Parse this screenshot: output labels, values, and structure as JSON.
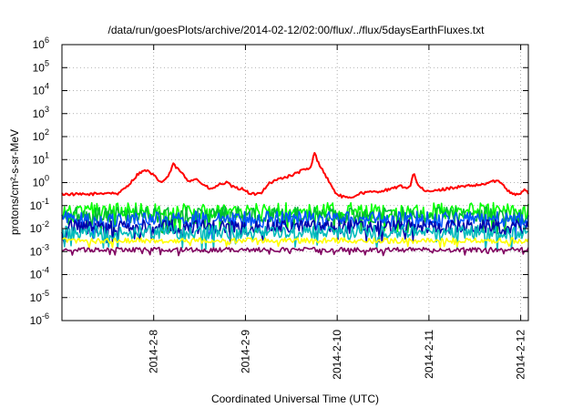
{
  "chart_data": {
    "type": "line",
    "title": "/data/run/goesPlots/archive/2014-02-12/02:00/flux/../flux/5daysEarthFluxes.txt",
    "xlabel": "Coordinated Universal Time (UTC)",
    "ylabel": "protons/cm²-s-sr-MeV",
    "y_scale": "log",
    "ylim": [
      "1e-6",
      "1e6"
    ],
    "xlim": [
      "2014-02-07T00:00",
      "2014-02-12T02:00"
    ],
    "grid": true,
    "legend": "none",
    "y_ticks": [
      {
        "value": 1e-06,
        "base": "10",
        "exp": "-6"
      },
      {
        "value": 1e-05,
        "base": "10",
        "exp": "-5"
      },
      {
        "value": 0.0001,
        "base": "10",
        "exp": "-4"
      },
      {
        "value": 0.001,
        "base": "10",
        "exp": "-3"
      },
      {
        "value": 0.01,
        "base": "10",
        "exp": "-2"
      },
      {
        "value": 0.1,
        "base": "10",
        "exp": "-1"
      },
      {
        "value": 1,
        "base": "10",
        "exp": "0"
      },
      {
        "value": 10,
        "base": "10",
        "exp": "1"
      },
      {
        "value": 100,
        "base": "10",
        "exp": "2"
      },
      {
        "value": 1000,
        "base": "10",
        "exp": "3"
      },
      {
        "value": 10000,
        "base": "10",
        "exp": "4"
      },
      {
        "value": 100000,
        "base": "10",
        "exp": "5"
      },
      {
        "value": 1000000,
        "base": "10",
        "exp": "6"
      }
    ],
    "x_ticks": [
      {
        "label": "2014-2-8",
        "date": "2014-02-08T00:00"
      },
      {
        "label": "2014-2-9",
        "date": "2014-02-09T00:00"
      },
      {
        "label": "2014-2-10",
        "date": "2014-02-10T00:00"
      },
      {
        "label": "2014-2-11",
        "date": "2014-02-11T00:00"
      },
      {
        "label": "2014-2-12",
        "date": "2014-02-12T00:00"
      }
    ],
    "series": [
      {
        "color": "#ff0000",
        "noise": 0.06,
        "points": [
          [
            "2014-02-07T00:00",
            0.32
          ],
          [
            "2014-02-07T06:00",
            0.3
          ],
          [
            "2014-02-07T12:00",
            0.36
          ],
          [
            "2014-02-07T15:00",
            0.33
          ],
          [
            "2014-02-07T16:00",
            0.5
          ],
          [
            "2014-02-07T18:00",
            1.0
          ],
          [
            "2014-02-07T20:00",
            2.5
          ],
          [
            "2014-02-07T22:00",
            3.5
          ],
          [
            "2014-02-08T00:00",
            2.0
          ],
          [
            "2014-02-08T02:00",
            1.0
          ],
          [
            "2014-02-08T04:00",
            2.0
          ],
          [
            "2014-02-08T05:00",
            6.5
          ],
          [
            "2014-02-08T07:00",
            3.0
          ],
          [
            "2014-02-08T09:00",
            1.2
          ],
          [
            "2014-02-08T11:00",
            1.5
          ],
          [
            "2014-02-08T13:00",
            0.8
          ],
          [
            "2014-02-08T15:00",
            0.5
          ],
          [
            "2014-02-08T17:00",
            0.8
          ],
          [
            "2014-02-08T19:00",
            1.0
          ],
          [
            "2014-02-08T21:00",
            0.6
          ],
          [
            "2014-02-09T00:00",
            0.5
          ],
          [
            "2014-02-09T01:00",
            0.3
          ],
          [
            "2014-02-09T04:00",
            0.35
          ],
          [
            "2014-02-09T06:00",
            0.9
          ],
          [
            "2014-02-09T09:00",
            1.5
          ],
          [
            "2014-02-09T12:00",
            2.0
          ],
          [
            "2014-02-09T15:00",
            3.5
          ],
          [
            "2014-02-09T17:00",
            4.0
          ],
          [
            "2014-02-09T18:00",
            20.0
          ],
          [
            "2014-02-09T19:00",
            8.0
          ],
          [
            "2014-02-09T21:00",
            2.0
          ],
          [
            "2014-02-09T23:00",
            0.5
          ],
          [
            "2014-02-10T00:00",
            0.3
          ],
          [
            "2014-02-10T03:00",
            0.2
          ],
          [
            "2014-02-10T06:00",
            0.35
          ],
          [
            "2014-02-10T10:00",
            0.4
          ],
          [
            "2014-02-10T14:00",
            0.5
          ],
          [
            "2014-02-10T16:00",
            0.7
          ],
          [
            "2014-02-10T19:00",
            0.6
          ],
          [
            "2014-02-10T20:00",
            3.0
          ],
          [
            "2014-02-10T21:00",
            0.8
          ],
          [
            "2014-02-10T23:00",
            0.4
          ],
          [
            "2014-02-11T02:00",
            0.45
          ],
          [
            "2014-02-11T06:00",
            0.6
          ],
          [
            "2014-02-11T10:00",
            0.7
          ],
          [
            "2014-02-11T14:00",
            0.8
          ],
          [
            "2014-02-11T17:00",
            1.2
          ],
          [
            "2014-02-11T19:00",
            1.0
          ],
          [
            "2014-02-11T21:00",
            0.4
          ],
          [
            "2014-02-11T23:00",
            0.3
          ],
          [
            "2014-02-12T00:00",
            0.35
          ],
          [
            "2014-02-12T01:00",
            0.5
          ],
          [
            "2014-02-12T02:00",
            0.35
          ]
        ]
      },
      {
        "color": "#00ff00",
        "base": 0.06,
        "noise": 0.35
      },
      {
        "color": "#00bb33",
        "base": 0.04,
        "noise": 0.35
      },
      {
        "color": "#0055ff",
        "base": 0.025,
        "noise": 0.35
      },
      {
        "color": "#0000aa",
        "base": 0.012,
        "noise": 0.3
      },
      {
        "color": "#00bbbb",
        "base": 0.007,
        "noise": 0.3
      },
      {
        "color": "#ffff00",
        "base": 0.003,
        "noise": 0.12
      },
      {
        "color": "#800060",
        "base": 0.0012,
        "noise": 0.1
      }
    ]
  }
}
